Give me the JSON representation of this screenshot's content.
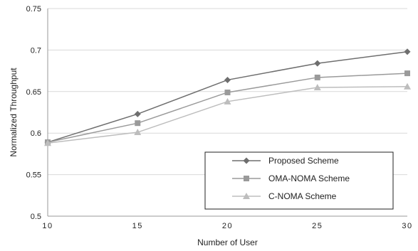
{
  "chart_data": {
    "type": "line",
    "title": "",
    "xlabel": "Number of User",
    "ylabel": "Normalized Throughput",
    "x": [
      10,
      15,
      20,
      25,
      30
    ],
    "xticks": [
      "10",
      "15",
      "20",
      "25",
      "30"
    ],
    "yticks": [
      "0.5",
      "0.55",
      "0.6",
      "0.65",
      "0.7",
      "0.75"
    ],
    "xlim": [
      10,
      30
    ],
    "ylim": [
      0.5,
      0.75
    ],
    "grid": "horizontal",
    "legend_position": "bottom-right",
    "series": [
      {
        "name": "Proposed Scheme",
        "marker": "diamond",
        "color": "#6e6e6e",
        "values": [
          0.589,
          0.623,
          0.664,
          0.684,
          0.698
        ]
      },
      {
        "name": "OMA-NOMA Scheme",
        "marker": "square",
        "color": "#9a9a9a",
        "values": [
          0.589,
          0.612,
          0.649,
          0.667,
          0.672
        ]
      },
      {
        "name": "C-NOMA Scheme",
        "marker": "triangle",
        "color": "#bdbdbd",
        "values": [
          0.588,
          0.601,
          0.638,
          0.655,
          0.656
        ]
      }
    ]
  }
}
